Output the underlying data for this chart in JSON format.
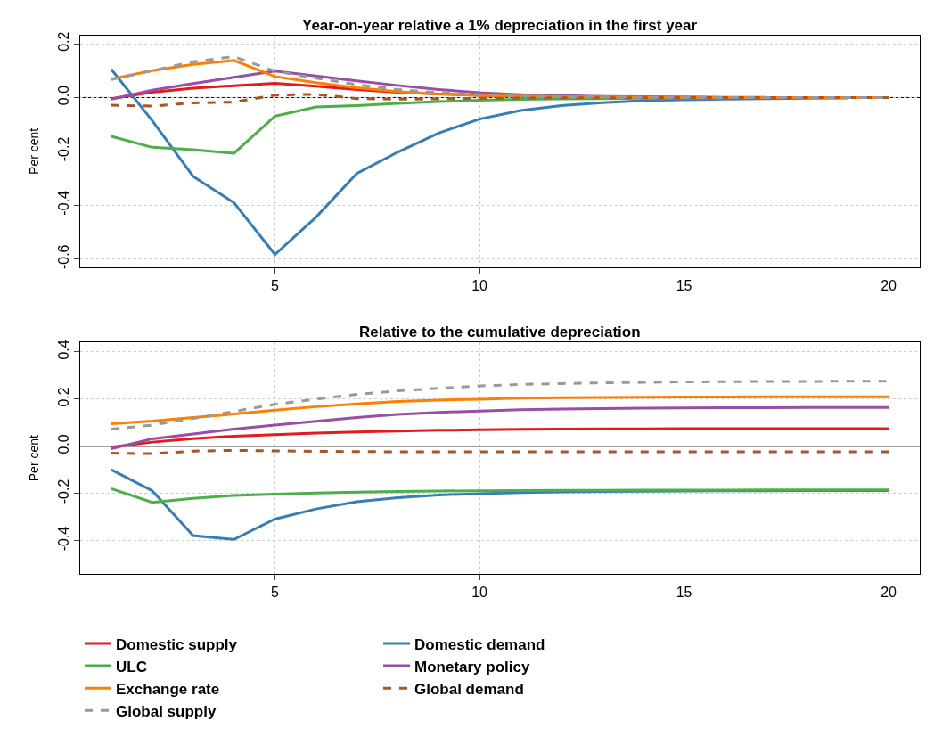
{
  "chart_data": [
    {
      "type": "line",
      "title": "Year-on-year relative a 1% depreciation in the first year",
      "ylabel": "Per cent",
      "x": [
        1,
        2,
        3,
        4,
        5,
        6,
        7,
        8,
        9,
        10,
        11,
        12,
        13,
        14,
        15,
        16,
        17,
        18,
        19,
        20
      ],
      "xlim": [
        0.24,
        20.76
      ],
      "xticks": [
        5,
        10,
        15,
        20
      ],
      "ylim": [
        -0.63,
        0.23
      ],
      "yticks": [
        -0.6,
        -0.4,
        -0.2,
        {
          "value": 0,
          "label": "0.0"
        },
        0.2
      ],
      "grid": true,
      "legend": false,
      "ref_lines": [
        {
          "axis": "y",
          "value": 0,
          "color": "#000000"
        }
      ],
      "series": [
        {
          "color": "#e41a1c",
          "line_style": "solid",
          "values": [
            -0.004,
            0.02,
            0.035,
            0.044,
            0.053,
            0.042,
            0.03,
            0.02,
            0.013,
            0.008,
            0.005,
            0.003,
            0.002,
            0.001,
            null,
            null,
            null,
            null,
            null,
            null
          ]
        },
        {
          "color": "#377eb8",
          "line_style": "solid",
          "values": [
            0.105,
            -0.086,
            -0.293,
            -0.391,
            -0.583,
            -0.445,
            -0.282,
            -0.203,
            -0.132,
            -0.08,
            -0.048,
            -0.03,
            -0.019,
            -0.012,
            -0.008,
            -0.006,
            -0.004,
            -0.003,
            -0.002,
            null
          ]
        },
        {
          "color": "#4daf4a",
          "line_style": "solid",
          "values": [
            -0.144,
            -0.185,
            -0.194,
            -0.207,
            -0.069,
            -0.035,
            -0.03,
            -0.022,
            -0.015,
            -0.01,
            -0.007,
            -0.005,
            -0.004,
            -0.003,
            -0.002,
            -0.002,
            null,
            null,
            null,
            null
          ]
        },
        {
          "color": "#984ea3",
          "line_style": "solid",
          "values": [
            -0.006,
            0.027,
            0.052,
            0.075,
            0.098,
            0.08,
            0.062,
            0.045,
            0.03,
            0.018,
            0.011,
            0.007,
            0.004,
            0.003,
            0.002,
            0.001,
            0.001,
            null,
            null,
            null
          ]
        },
        {
          "color": "#ff7f00",
          "line_style": "solid",
          "values": [
            0.069,
            0.1,
            0.123,
            0.138,
            0.078,
            0.055,
            0.036,
            0.022,
            0.013,
            0.008,
            0.005,
            0.003,
            0.002,
            0.001,
            0.001,
            0,
            0,
            0,
            0,
            0
          ]
        },
        {
          "color": "#a65628",
          "line_style": "dashed",
          "values": [
            -0.028,
            -0.032,
            -0.02,
            -0.017,
            0.009,
            0.012,
            -0.004,
            -0.006,
            -0.005,
            -0.003,
            -0.002,
            -0.001,
            -0.001,
            -0.001,
            0,
            0,
            0,
            0,
            0,
            0
          ]
        },
        {
          "color": "#999999",
          "line_style": "dashed",
          "values": [
            0.067,
            0.1,
            0.133,
            0.152,
            0.098,
            0.072,
            0.048,
            0.03,
            0.018,
            0.011,
            0.006,
            0.004,
            0.002,
            0.001,
            0.001,
            0,
            0,
            0,
            0,
            0
          ]
        }
      ]
    },
    {
      "type": "line",
      "title": "Relative to the cumulative depreciation",
      "ylabel": "Per cent",
      "x": [
        1,
        2,
        3,
        4,
        5,
        6,
        7,
        8,
        9,
        10,
        11,
        12,
        13,
        14,
        15,
        16,
        17,
        18,
        19,
        20
      ],
      "xlim": [
        0.24,
        20.76
      ],
      "xticks": [
        5,
        10,
        15,
        20
      ],
      "ylim": [
        -0.54,
        0.44
      ],
      "yticks": [
        -0.4,
        -0.2,
        {
          "value": 0,
          "label": "0.0"
        },
        0.2,
        0.4
      ],
      "grid": true,
      "legend": "bottom",
      "ref_lines": [
        {
          "axis": "y",
          "value": 0,
          "color": "#000000"
        }
      ],
      "series": [
        {
          "name": "Domestic supply",
          "color": "#e41a1c",
          "line_style": "solid",
          "values": [
            -0.003,
            0.018,
            0.033,
            0.043,
            0.05,
            0.056,
            0.061,
            0.065,
            0.068,
            0.07,
            0.072,
            0.073,
            0.074,
            0.074,
            0.075,
            0.075,
            0.075,
            0.075,
            0.075,
            0.075
          ]
        },
        {
          "name": "Domestic demand",
          "color": "#377eb8",
          "line_style": "solid",
          "values": [
            -0.099,
            -0.188,
            -0.378,
            -0.394,
            -0.308,
            -0.265,
            -0.234,
            -0.217,
            -0.206,
            -0.2,
            -0.196,
            -0.193,
            -0.191,
            -0.19,
            -0.189,
            -0.188,
            -0.188,
            -0.187,
            -0.187,
            -0.187
          ]
        },
        {
          "name": "ULC",
          "color": "#4daf4a",
          "line_style": "solid",
          "values": [
            -0.179,
            -0.237,
            -0.22,
            -0.208,
            -0.202,
            -0.198,
            -0.194,
            -0.191,
            -0.189,
            -0.188,
            -0.187,
            -0.186,
            -0.186,
            -0.185,
            -0.185,
            -0.185,
            -0.184,
            -0.184,
            -0.184,
            -0.184
          ]
        },
        {
          "name": "Monetary policy",
          "color": "#984ea3",
          "line_style": "solid",
          "values": [
            -0.01,
            0.032,
            0.052,
            0.073,
            0.09,
            0.106,
            0.122,
            0.135,
            0.144,
            0.15,
            0.155,
            0.158,
            0.16,
            0.162,
            0.163,
            0.164,
            0.164,
            0.165,
            0.165,
            0.165
          ]
        },
        {
          "name": "Exchange rate",
          "color": "#ff7f00",
          "line_style": "solid",
          "values": [
            0.096,
            0.107,
            0.122,
            0.137,
            0.153,
            0.168,
            0.18,
            0.19,
            0.196,
            0.2,
            0.204,
            0.206,
            0.207,
            0.208,
            0.209,
            0.209,
            0.21,
            0.21,
            0.21,
            0.21
          ]
        },
        {
          "name": "Global demand",
          "color": "#a65628",
          "line_style": "dashed",
          "values": [
            -0.029,
            -0.031,
            -0.02,
            -0.017,
            -0.019,
            -0.021,
            -0.022,
            -0.023,
            -0.023,
            -0.023,
            -0.023,
            -0.023,
            -0.023,
            -0.023,
            -0.023,
            -0.023,
            -0.023,
            -0.023,
            -0.023,
            -0.023
          ]
        },
        {
          "name": "Global supply",
          "color": "#999999",
          "line_style": "dashed",
          "values": [
            0.073,
            0.09,
            0.118,
            0.148,
            0.178,
            0.2,
            0.22,
            0.235,
            0.246,
            0.256,
            0.262,
            0.266,
            0.269,
            0.271,
            0.273,
            0.274,
            0.275,
            0.275,
            0.276,
            0.276
          ]
        }
      ]
    }
  ]
}
